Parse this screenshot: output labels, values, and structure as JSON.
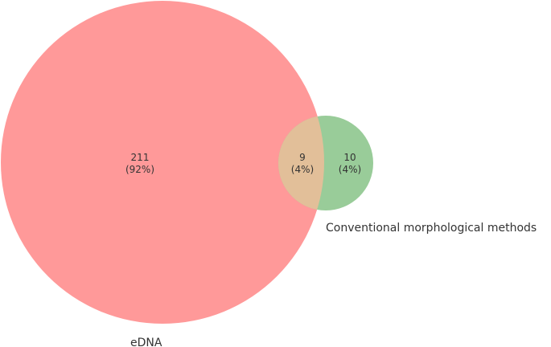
{
  "venn": {
    "sets": [
      {
        "name": "eDNA",
        "color": "#ff9999"
      },
      {
        "name": "Conventional morphological methods",
        "color": "#99cc99"
      }
    ],
    "overlap_color": "#e2bf99",
    "regions": {
      "edna_only": {
        "count": "211",
        "percent": "(92%)"
      },
      "both": {
        "count": "9",
        "percent": "(4%)"
      },
      "conventional_only": {
        "count": "10",
        "percent": "(4%)"
      }
    }
  }
}
